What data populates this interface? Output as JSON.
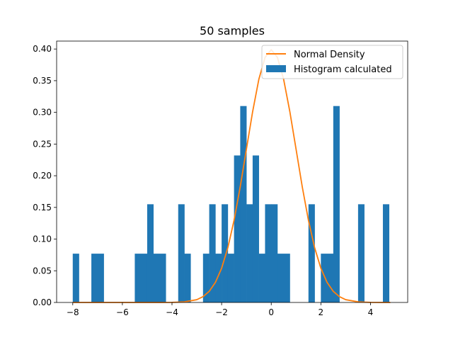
{
  "chart_data": {
    "type": "bar",
    "title": "50 samples",
    "xlabel": "",
    "ylabel": "",
    "xlim": [
      -8.65,
      5.5
    ],
    "ylim": [
      0,
      0.4125
    ],
    "x_ticks": [
      -8,
      -6,
      -4,
      -2,
      0,
      2,
      4
    ],
    "x_tick_labels": [
      "−8",
      "−6",
      "−4",
      "−2",
      "0",
      "2",
      "4"
    ],
    "y_ticks": [
      0.0,
      0.05,
      0.1,
      0.15,
      0.2,
      0.25,
      0.3,
      0.35,
      0.4
    ],
    "y_tick_labels": [
      "0.00",
      "0.05",
      "0.10",
      "0.15",
      "0.20",
      "0.25",
      "0.30",
      "0.35",
      "0.40"
    ],
    "grid": false,
    "legend_position": "top-right",
    "legend": [
      {
        "label": "Normal Density",
        "kind": "line",
        "color": "#ff7f0e"
      },
      {
        "label": "Histogram calculated",
        "kind": "patch",
        "color": "#1f77b4"
      }
    ],
    "series": [
      {
        "name": "Histogram calculated",
        "type": "histogram",
        "color": "#1f77b4",
        "bins": [
          {
            "x0": -8.0,
            "x1": -7.75,
            "value": 0.077
          },
          {
            "x0": -7.25,
            "x1": -6.75,
            "value": 0.077
          },
          {
            "x0": -5.5,
            "x1": -5.0,
            "value": 0.077
          },
          {
            "x0": -5.0,
            "x1": -4.75,
            "value": 0.155
          },
          {
            "x0": -4.75,
            "x1": -4.25,
            "value": 0.077
          },
          {
            "x0": -3.75,
            "x1": -3.5,
            "value": 0.155
          },
          {
            "x0": -3.5,
            "x1": -3.25,
            "value": 0.077
          },
          {
            "x0": -2.75,
            "x1": -2.5,
            "value": 0.077
          },
          {
            "x0": -2.5,
            "x1": -2.25,
            "value": 0.155
          },
          {
            "x0": -2.25,
            "x1": -2.0,
            "value": 0.077
          },
          {
            "x0": -2.0,
            "x1": -1.75,
            "value": 0.155
          },
          {
            "x0": -1.75,
            "x1": -1.5,
            "value": 0.077
          },
          {
            "x0": -1.5,
            "x1": -1.25,
            "value": 0.232
          },
          {
            "x0": -1.25,
            "x1": -1.0,
            "value": 0.31
          },
          {
            "x0": -1.0,
            "x1": -0.75,
            "value": 0.155
          },
          {
            "x0": -0.75,
            "x1": -0.5,
            "value": 0.232
          },
          {
            "x0": -0.5,
            "x1": -0.25,
            "value": 0.077
          },
          {
            "x0": -0.25,
            "x1": 0.0,
            "value": 0.155
          },
          {
            "x0": 0.0,
            "x1": 0.25,
            "value": 0.155
          },
          {
            "x0": 0.25,
            "x1": 0.75,
            "value": 0.077
          },
          {
            "x0": 1.5,
            "x1": 1.75,
            "value": 0.155
          },
          {
            "x0": 2.0,
            "x1": 2.5,
            "value": 0.077
          },
          {
            "x0": 2.5,
            "x1": 2.75,
            "value": 0.31
          },
          {
            "x0": 3.5,
            "x1": 3.75,
            "value": 0.155
          },
          {
            "x0": 4.5,
            "x1": 4.75,
            "value": 0.155
          }
        ]
      },
      {
        "name": "Normal Density",
        "type": "line",
        "color": "#ff7f0e",
        "x": [
          -8,
          -7.5,
          -7,
          -6.5,
          -6,
          -5.5,
          -5,
          -4.5,
          -4,
          -3.5,
          -3,
          -2.75,
          -2.5,
          -2.25,
          -2,
          -1.75,
          -1.5,
          -1.25,
          -1,
          -0.75,
          -0.5,
          -0.25,
          0,
          0.25,
          0.5,
          0.75,
          1,
          1.25,
          1.5,
          1.75,
          2,
          2.25,
          2.5,
          2.75,
          3,
          3.5,
          4,
          4.5,
          4.8
        ],
        "y": [
          0.0,
          0.0,
          0.0,
          0.0,
          0.0,
          0.0,
          0.0,
          0.0,
          0.0001,
          0.0009,
          0.0044,
          0.0091,
          0.0175,
          0.0317,
          0.054,
          0.0863,
          0.1295,
          0.1826,
          0.242,
          0.3011,
          0.3521,
          0.3867,
          0.3989,
          0.3867,
          0.3521,
          0.3011,
          0.242,
          0.1826,
          0.1295,
          0.0863,
          0.054,
          0.0317,
          0.0175,
          0.0091,
          0.0044,
          0.0009,
          0.0001,
          0.0,
          0.0
        ]
      }
    ]
  }
}
